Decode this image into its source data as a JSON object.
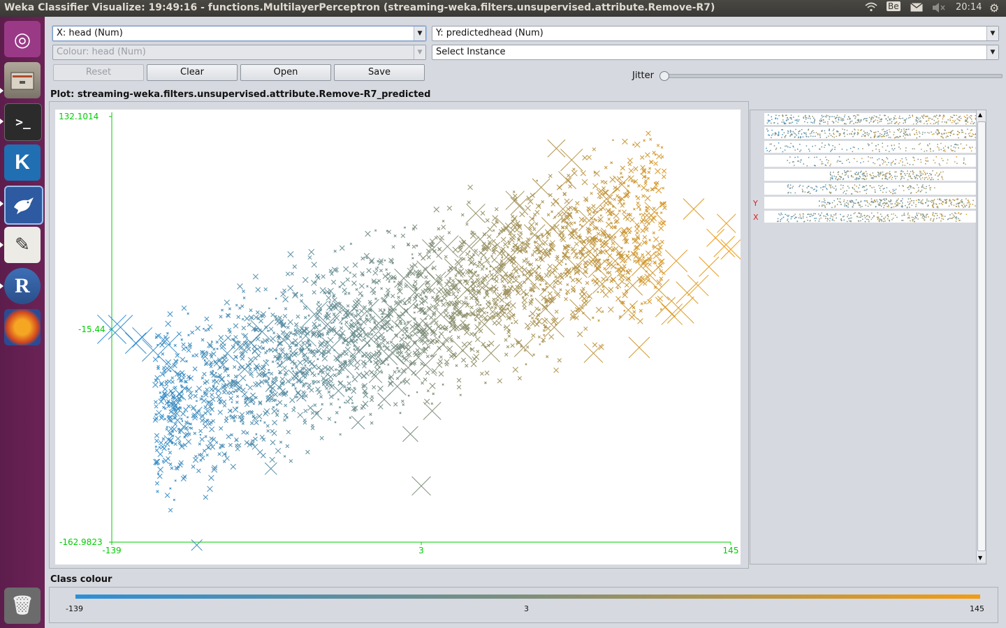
{
  "topbar": {
    "title": "Weka Classifier Visualize: 19:49:16 - functions.MultilayerPerceptron (streaming-weka.filters.unsupervised.attribute.Remove-R7)",
    "keyboard_layout": "Be",
    "clock": "20:14",
    "icons": [
      "wifi-icon",
      "keyboard-icon",
      "mail-icon",
      "volume-icon",
      "settings-gear-icon"
    ]
  },
  "launcher": {
    "items": [
      {
        "name": "ubuntu-dash-icon",
        "glyph": "◎"
      },
      {
        "name": "files-icon",
        "glyph": "▭"
      },
      {
        "name": "terminal-icon",
        "glyph": ">_"
      },
      {
        "name": "kile-icon",
        "glyph": "K"
      },
      {
        "name": "weka-icon",
        "glyph": "🐦"
      },
      {
        "name": "text-editor-icon",
        "glyph": "✎"
      },
      {
        "name": "r-icon",
        "glyph": "R"
      },
      {
        "name": "firefox-icon",
        "glyph": "◉"
      },
      {
        "name": "trash-icon",
        "glyph": "🗑"
      }
    ]
  },
  "controls": {
    "x_axis": "X: head (Num)",
    "y_axis": "Y: predictedhead (Num)",
    "colour": "Colour: head (Num)",
    "select_instance": "Select Instance",
    "reset": "Reset",
    "clear": "Clear",
    "open": "Open",
    "save": "Save",
    "jitter": "Jitter",
    "jitter_level": 0
  },
  "plot_title": "Plot: streaming-weka.filters.unsupervised.attribute.Remove-R7_predicted",
  "strip_markers": {
    "y": "Y",
    "x": "X"
  },
  "class_colour": {
    "label": "Class colour",
    "min": "-139",
    "mid": "3",
    "max": "145",
    "color_low": "#2e8fd6",
    "color_high": "#f39c12"
  },
  "chart_data": {
    "type": "scatter",
    "xlabel": "",
    "ylabel": "",
    "x_ticks": [
      "-139",
      "3",
      "145"
    ],
    "y_ticks": [
      "132.1014",
      "-15.44",
      "-162.9823"
    ],
    "xlim": [
      -139,
      145
    ],
    "ylim": [
      -162.9823,
      132.1014
    ],
    "marker": "cross, size proportional to error",
    "colour_by": "head",
    "points": [
      [
        -139,
        -15.4,
        2.2
      ],
      [
        -135,
        -14,
        1.8
      ],
      [
        -128,
        -25,
        1.5
      ],
      [
        -125,
        -21,
        1.4
      ],
      [
        -120,
        -30,
        1.6
      ],
      [
        -113,
        -26,
        1.5
      ],
      [
        -112,
        -42,
        1
      ],
      [
        -108,
        -60,
        0.8
      ],
      [
        -106,
        -83,
        0.5
      ],
      [
        -100,
        -73,
        0.6
      ],
      [
        -113,
        -92,
        0.4
      ],
      [
        -100,
        -165,
        0.6
      ],
      [
        -88,
        -40,
        0.6
      ],
      [
        -86,
        -32,
        1
      ],
      [
        -80,
        -27,
        0.9
      ],
      [
        -78,
        -43,
        1.2
      ],
      [
        -75,
        -25,
        1.4
      ],
      [
        -70,
        -17,
        1.7
      ],
      [
        -66,
        -55,
        0.6
      ],
      [
        -66,
        -112,
        0.7
      ],
      [
        -60,
        -23,
        0.9
      ],
      [
        -58,
        -35,
        1.3
      ],
      [
        -55,
        -48,
        0.8
      ],
      [
        -52,
        -62,
        0.5
      ],
      [
        -50,
        -20,
        1.5
      ],
      [
        -46,
        -5,
        2
      ],
      [
        -45,
        -74,
        0.6
      ],
      [
        -40,
        -12,
        1.7
      ],
      [
        -38,
        -28,
        1.4
      ],
      [
        -35,
        -58,
        0.7
      ],
      [
        -32,
        -42,
        1.3
      ],
      [
        -30,
        -4,
        1.5
      ],
      [
        -28,
        -18,
        1.2
      ],
      [
        -26,
        -80,
        0.8
      ],
      [
        -25,
        -30,
        1.3
      ],
      [
        -22,
        -3,
        1.8
      ],
      [
        -20,
        -22,
        1.6
      ],
      [
        -18,
        -48,
        0.8
      ],
      [
        -15,
        -9,
        1.7
      ],
      [
        -14,
        -64,
        0.8
      ],
      [
        -12,
        -34,
        1.2
      ],
      [
        -10,
        -2,
        1.8
      ],
      [
        -10,
        -32,
        1.6
      ],
      [
        -8,
        -55,
        1.2
      ],
      [
        -6,
        -16,
        1.4
      ],
      [
        -5,
        20,
        1.3
      ],
      [
        -4,
        -3,
        1.6
      ],
      [
        -3,
        -42,
        1.8
      ],
      [
        -2,
        -88,
        1
      ],
      [
        0,
        -25,
        1.4
      ],
      [
        0,
        10,
        1.4
      ],
      [
        2,
        -12,
        1.4
      ],
      [
        3,
        -124,
        1.3
      ],
      [
        5,
        -40,
        1.6
      ],
      [
        5,
        26,
        1.2
      ],
      [
        6,
        -13,
        1
      ],
      [
        8,
        -72,
        1.2
      ],
      [
        8,
        40,
        1.4
      ],
      [
        10,
        18,
        1.3
      ],
      [
        12,
        -5,
        1.5
      ],
      [
        13,
        -26,
        1.3
      ],
      [
        15,
        42,
        1.6
      ],
      [
        18,
        27,
        1.3
      ],
      [
        20,
        -2,
        1.2
      ],
      [
        22,
        -30,
        1.3
      ],
      [
        24,
        12,
        1.8
      ],
      [
        25,
        42,
        1.4
      ],
      [
        28,
        65,
        1.3
      ],
      [
        30,
        47,
        1.2
      ],
      [
        32,
        -12,
        1.5
      ],
      [
        35,
        -32,
        1.2
      ],
      [
        38,
        24,
        1.6
      ],
      [
        40,
        -2,
        1.3
      ],
      [
        42,
        55,
        1.4
      ],
      [
        44,
        35,
        1.2
      ],
      [
        46,
        74,
        1.3
      ],
      [
        48,
        70,
        1.2
      ],
      [
        50,
        -28,
        1.3
      ],
      [
        52,
        20,
        1.7
      ],
      [
        55,
        50,
        1.5
      ],
      [
        58,
        83,
        1.2
      ],
      [
        60,
        -1,
        1.5
      ],
      [
        62,
        15,
        1.5
      ],
      [
        63,
        55,
        1.5
      ],
      [
        64,
        -14,
        1.4
      ],
      [
        65,
        110,
        1.2
      ],
      [
        68,
        68,
        1.4
      ],
      [
        70,
        88,
        1.2
      ],
      [
        72,
        102,
        1.6
      ],
      [
        74,
        28,
        1.6
      ],
      [
        76,
        -2,
        1.5
      ],
      [
        78,
        42,
        1.7
      ],
      [
        80,
        60,
        1.5
      ],
      [
        82,
        -32,
        1.3
      ],
      [
        84,
        27,
        1.3
      ],
      [
        86,
        16,
        1.3
      ],
      [
        88,
        75,
        1.4
      ],
      [
        90,
        48,
        1.4
      ],
      [
        92,
        32,
        1.4
      ],
      [
        95,
        85,
        1.2
      ],
      [
        98,
        -2,
        1.3
      ],
      [
        100,
        15,
        1.4
      ],
      [
        103,
        -28,
        1.5
      ],
      [
        105,
        30,
        1.8
      ],
      [
        108,
        22,
        1.7
      ],
      [
        110,
        66,
        1.4
      ],
      [
        112,
        12,
        1.5
      ],
      [
        115,
        0,
        1.4
      ],
      [
        118,
        -5,
        1.5
      ],
      [
        120,
        32,
        1.6
      ],
      [
        122,
        -2,
        2
      ],
      [
        125,
        10,
        1.6
      ],
      [
        128,
        68,
        1.5
      ],
      [
        130,
        15,
        1.5
      ],
      [
        135,
        28,
        1.4
      ],
      [
        138,
        48,
        1.2
      ],
      [
        142,
        42,
        1.5
      ],
      [
        143,
        58,
        1.3
      ],
      [
        145,
        40,
        1.4
      ]
    ]
  }
}
